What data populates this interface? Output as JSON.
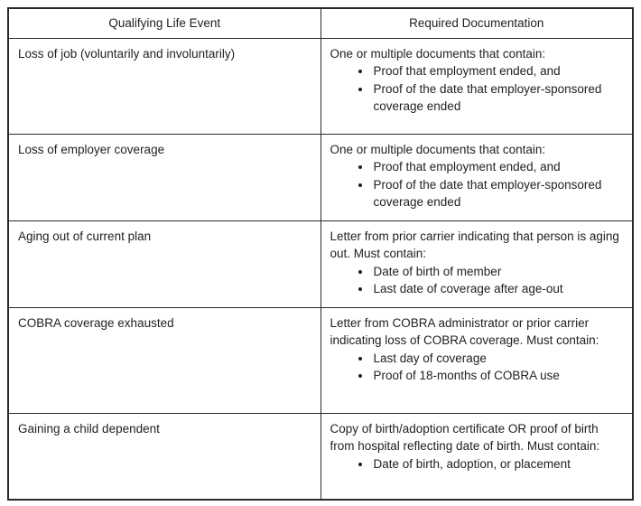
{
  "table": {
    "headers": [
      "Qualifying Life Event",
      "Required Documentation"
    ],
    "rows": [
      {
        "event": "Loss of job (voluntarily and involuntarily)",
        "intro": "One or multiple documents that contain:",
        "bullets": [
          "Proof that employment ended, and",
          "Proof of the date that employer-sponsored coverage ended"
        ]
      },
      {
        "event": "Loss of employer coverage",
        "intro": "One or multiple documents that contain:",
        "bullets": [
          "Proof that employment ended, and",
          "Proof of the date that employer-sponsored coverage ended"
        ]
      },
      {
        "event": "Aging out of current plan",
        "intro": "Letter from prior carrier indicating that person is aging out. Must contain:",
        "bullets": [
          "Date of birth of member",
          "Last date of coverage after age-out"
        ]
      },
      {
        "event": "COBRA coverage exhausted",
        "intro": "Letter from COBRA administrator or prior carrier indicating loss of COBRA coverage. Must contain:",
        "bullets": [
          "Last day of coverage",
          "Proof of 18-months of COBRA use"
        ]
      },
      {
        "event": "Gaining a child dependent",
        "intro": "Copy of birth/adoption certificate OR proof of birth from hospital reflecting date of birth. Must contain:",
        "bullets": [
          "Date of birth, adoption, or placement"
        ]
      }
    ]
  }
}
